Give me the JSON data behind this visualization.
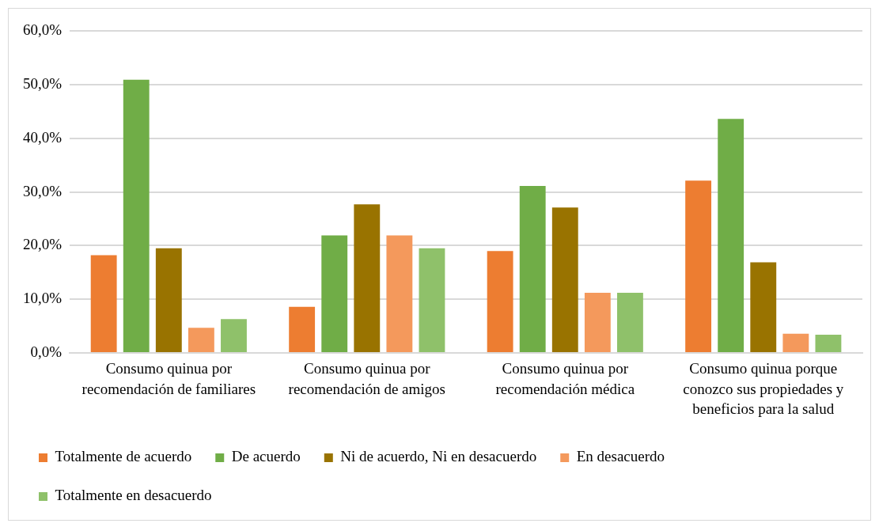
{
  "chart_data": {
    "type": "bar",
    "categories": [
      "Consumo quinua por recomendación de familiares",
      "Consumo quinua por recomendación de amigos",
      "Consumo quinua por recomendación médica",
      "Consumo quinua porque conozco sus propiedades y beneficios para la salud"
    ],
    "series": [
      {
        "name": "Totalmente de acuerdo",
        "color": "#ed7d31",
        "values": [
          18.2,
          8.6,
          19.0,
          32.1
        ]
      },
      {
        "name": "De acuerdo",
        "color": "#70ad47",
        "values": [
          50.9,
          21.9,
          31.1,
          43.6
        ]
      },
      {
        "name": "Ni de acuerdo, Ni en desacuerdo",
        "color": "#997300",
        "values": [
          19.5,
          27.7,
          27.1,
          16.9
        ]
      },
      {
        "name": "En desacuerdo",
        "color": "#f4995c",
        "values": [
          4.7,
          21.9,
          11.2,
          3.6
        ]
      },
      {
        "name": "Totalmente en desacuerdo",
        "color": "#8fc16a",
        "values": [
          6.3,
          19.5,
          11.2,
          3.4
        ]
      }
    ],
    "ylim": [
      0,
      60
    ],
    "yticks": [
      {
        "value": 0,
        "label": "0,0%"
      },
      {
        "value": 10,
        "label": "10,0%"
      },
      {
        "value": 20,
        "label": "20,0%"
      },
      {
        "value": 30,
        "label": "30,0%"
      },
      {
        "value": 40,
        "label": "40,0%"
      },
      {
        "value": 50,
        "label": "50,0%"
      },
      {
        "value": 60,
        "label": "60,0%"
      }
    ],
    "grid": "y",
    "legend": "bottom"
  }
}
